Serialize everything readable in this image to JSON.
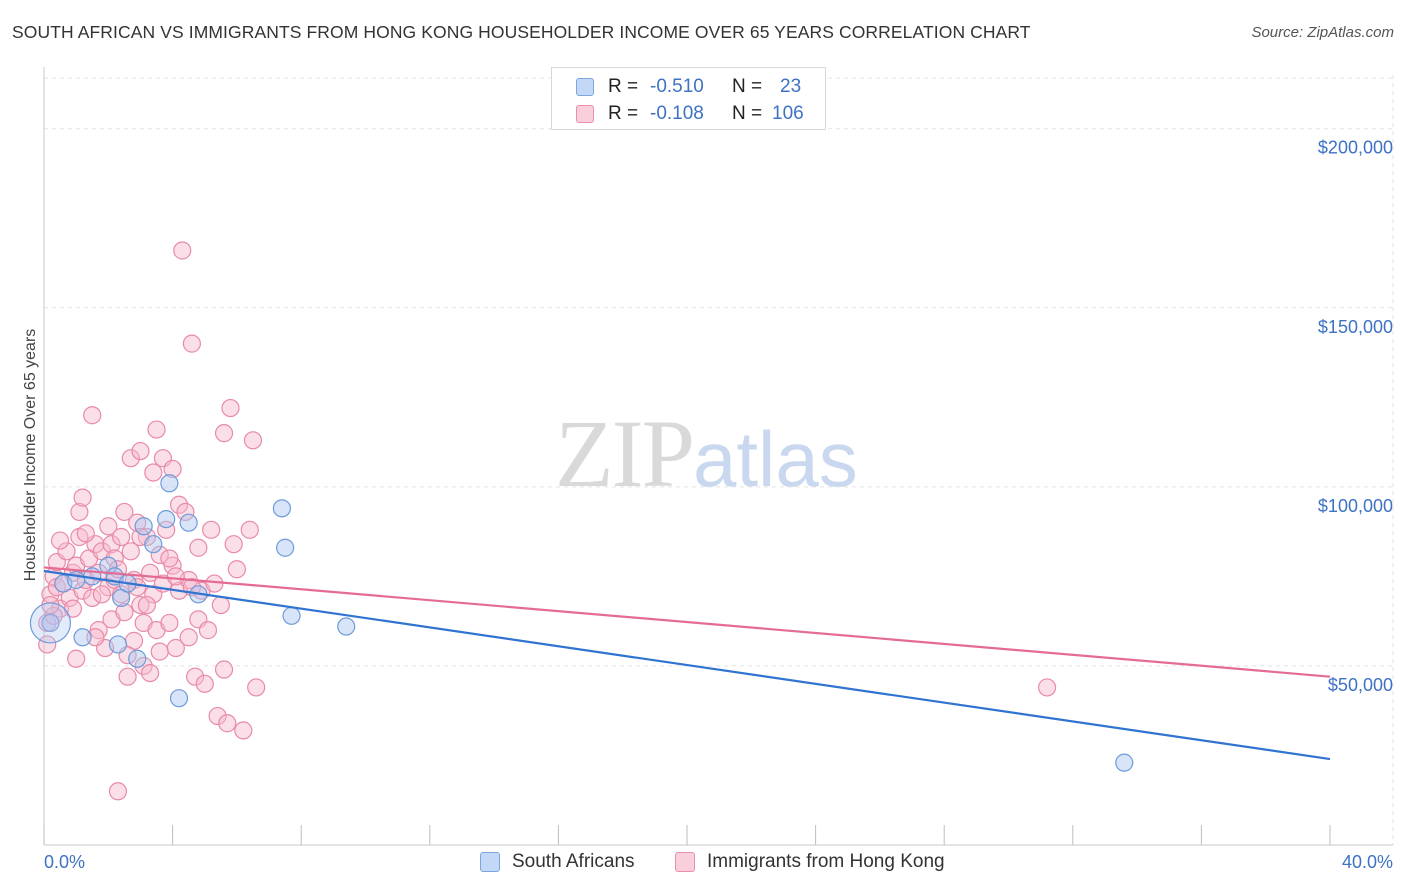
{
  "title": "SOUTH AFRICAN VS IMMIGRANTS FROM HONG KONG HOUSEHOLDER INCOME OVER 65 YEARS CORRELATION CHART",
  "source": "Source: ZipAtlas.com",
  "watermark": {
    "zip": "ZIP",
    "atlas": "atlas"
  },
  "legend_stats": [
    {
      "r_label": "R =",
      "r_value": "-0.510",
      "n_label": "N =",
      "n_value": "23",
      "color": "#a8c6f0",
      "border": "#7ea6de"
    },
    {
      "r_label": "R =",
      "r_value": "-0.108",
      "n_label": "N =",
      "n_value": "106",
      "color": "#f6b9cc",
      "border": "#ec8fac"
    }
  ],
  "chart_data": {
    "type": "scatter",
    "title": "SOUTH AFRICAN VS IMMIGRANTS FROM HONG KONG HOUSEHOLDER INCOME OVER 65 YEARS CORRELATION CHART",
    "xlabel": "",
    "ylabel": "Householder Income Over 65 years",
    "xlim": [
      0,
      40
    ],
    "ylim": [
      0,
      215000
    ],
    "x_tick_labels": [
      "0.0%",
      "40.0%"
    ],
    "y_ticks": [
      50000,
      100000,
      150000,
      200000
    ],
    "y_tick_labels": [
      "$50,000",
      "$100,000",
      "$150,000",
      "$200,000"
    ],
    "legend": [
      "South Africans",
      "Immigrants from Hong Kong"
    ],
    "series": [
      {
        "name": "South Africans",
        "color": "#a8c6f0",
        "stroke": "#6f9bd9",
        "line_color": "#2f74d0",
        "trend": [
          [
            0,
            76500
          ],
          [
            40,
            24000
          ]
        ],
        "points": [
          [
            0.2,
            62000
          ],
          [
            0.6,
            73000
          ],
          [
            1.2,
            58000
          ],
          [
            1.5,
            75000
          ],
          [
            2.0,
            78000
          ],
          [
            2.2,
            75000
          ],
          [
            2.3,
            56000
          ],
          [
            2.4,
            69000
          ],
          [
            2.6,
            73000
          ],
          [
            2.9,
            52000
          ],
          [
            3.1,
            89000
          ],
          [
            3.4,
            84000
          ],
          [
            3.8,
            91000
          ],
          [
            3.9,
            101000
          ],
          [
            4.2,
            41000
          ],
          [
            4.5,
            90000
          ],
          [
            4.8,
            70000
          ],
          [
            7.4,
            94000
          ],
          [
            7.5,
            83000
          ],
          [
            7.7,
            64000
          ],
          [
            9.4,
            61000
          ],
          [
            33.6,
            23000
          ],
          [
            1.0,
            74000
          ]
        ]
      },
      {
        "name": "Immigrants from Hong Kong",
        "color": "#f6b9cc",
        "stroke": "#e88aa8",
        "line_color": "#e46b93",
        "trend": [
          [
            0,
            77500
          ],
          [
            40,
            47000
          ]
        ],
        "points": [
          [
            0.1,
            56000
          ],
          [
            0.1,
            62000
          ],
          [
            0.2,
            70000
          ],
          [
            0.3,
            75000
          ],
          [
            0.4,
            72000
          ],
          [
            0.4,
            79000
          ],
          [
            0.5,
            66000
          ],
          [
            0.6,
            73000
          ],
          [
            0.7,
            82000
          ],
          [
            0.8,
            69000
          ],
          [
            0.9,
            76000
          ],
          [
            1.0,
            78000
          ],
          [
            1.0,
            52000
          ],
          [
            1.1,
            93000
          ],
          [
            1.1,
            86000
          ],
          [
            1.2,
            71000
          ],
          [
            1.2,
            97000
          ],
          [
            1.3,
            74000
          ],
          [
            1.4,
            80000
          ],
          [
            1.5,
            69000
          ],
          [
            1.5,
            120000
          ],
          [
            1.6,
            84000
          ],
          [
            1.7,
            76000
          ],
          [
            1.7,
            60000
          ],
          [
            1.8,
            82000
          ],
          [
            1.9,
            55000
          ],
          [
            2.0,
            89000
          ],
          [
            2.0,
            72000
          ],
          [
            2.1,
            84000
          ],
          [
            2.1,
            63000
          ],
          [
            2.2,
            80000
          ],
          [
            2.2,
            74000
          ],
          [
            2.3,
            77000
          ],
          [
            2.4,
            86000
          ],
          [
            2.4,
            70000
          ],
          [
            2.5,
            93000
          ],
          [
            2.5,
            65000
          ],
          [
            2.6,
            47000
          ],
          [
            2.7,
            108000
          ],
          [
            2.7,
            82000
          ],
          [
            2.8,
            74000
          ],
          [
            2.8,
            57000
          ],
          [
            2.9,
            90000
          ],
          [
            3.0,
            110000
          ],
          [
            3.0,
            67000
          ],
          [
            3.1,
            62000
          ],
          [
            3.1,
            50000
          ],
          [
            3.2,
            86000
          ],
          [
            3.3,
            76000
          ],
          [
            3.3,
            48000
          ],
          [
            3.4,
            104000
          ],
          [
            3.4,
            70000
          ],
          [
            3.5,
            116000
          ],
          [
            3.5,
            60000
          ],
          [
            3.6,
            81000
          ],
          [
            3.6,
            54000
          ],
          [
            3.7,
            108000
          ],
          [
            3.7,
            73000
          ],
          [
            3.8,
            88000
          ],
          [
            3.9,
            62000
          ],
          [
            4.0,
            105000
          ],
          [
            4.0,
            78000
          ],
          [
            4.1,
            55000
          ],
          [
            4.2,
            95000
          ],
          [
            4.2,
            71000
          ],
          [
            4.3,
            166000
          ],
          [
            4.4,
            93000
          ],
          [
            4.5,
            74000
          ],
          [
            4.5,
            58000
          ],
          [
            4.6,
            140000
          ],
          [
            4.7,
            47000
          ],
          [
            4.8,
            83000
          ],
          [
            4.8,
            63000
          ],
          [
            4.9,
            71000
          ],
          [
            5.0,
            45000
          ],
          [
            5.1,
            60000
          ],
          [
            5.2,
            88000
          ],
          [
            5.3,
            73000
          ],
          [
            5.4,
            36000
          ],
          [
            5.5,
            67000
          ],
          [
            5.6,
            115000
          ],
          [
            5.6,
            49000
          ],
          [
            5.7,
            34000
          ],
          [
            5.8,
            122000
          ],
          [
            5.9,
            84000
          ],
          [
            6.0,
            77000
          ],
          [
            6.2,
            32000
          ],
          [
            6.4,
            88000
          ],
          [
            6.5,
            113000
          ],
          [
            6.6,
            44000
          ],
          [
            2.3,
            15000
          ],
          [
            31.2,
            44000
          ],
          [
            0.3,
            64000
          ],
          [
            0.9,
            66000
          ],
          [
            1.3,
            87000
          ],
          [
            1.8,
            70000
          ],
          [
            2.6,
            53000
          ],
          [
            3.0,
            86000
          ],
          [
            3.9,
            80000
          ],
          [
            4.6,
            72000
          ],
          [
            0.5,
            85000
          ],
          [
            1.6,
            58000
          ],
          [
            2.9,
            72000
          ],
          [
            3.2,
            67000
          ],
          [
            4.1,
            75000
          ],
          [
            0.2,
            67000
          ]
        ]
      }
    ]
  }
}
